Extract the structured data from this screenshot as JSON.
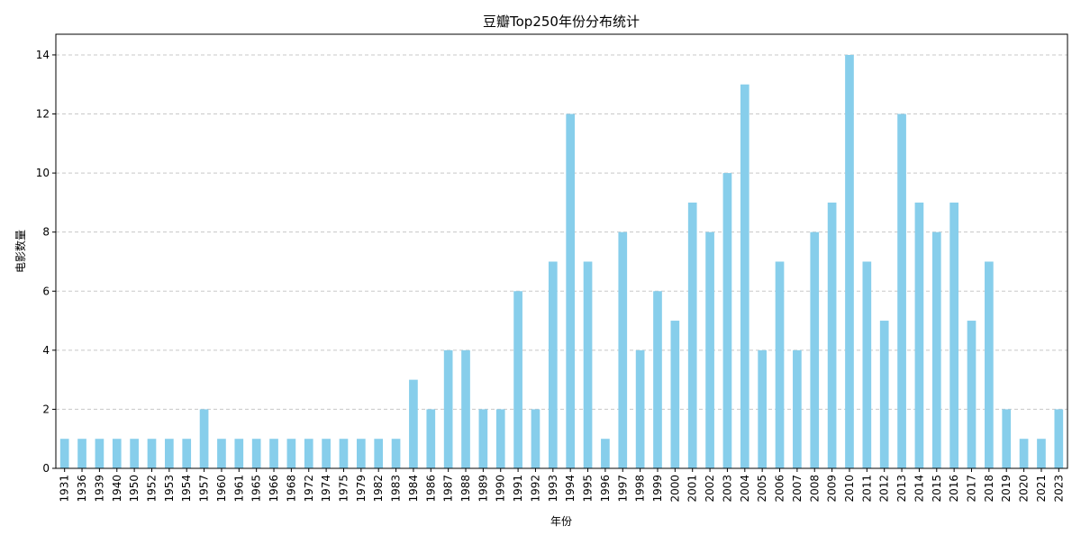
{
  "chart_data": {
    "type": "bar",
    "title": "豆瓣Top250年份分布统计",
    "xlabel": "年份",
    "ylabel": "电影数量",
    "ylim": [
      0,
      14.7
    ],
    "yticks": [
      0,
      2,
      4,
      6,
      8,
      10,
      12,
      14
    ],
    "grid": "y-dashed",
    "bar_color": "#87CEEB",
    "categories": [
      "1931",
      "1936",
      "1939",
      "1940",
      "1950",
      "1952",
      "1953",
      "1954",
      "1957",
      "1960",
      "1961",
      "1965",
      "1966",
      "1968",
      "1972",
      "1974",
      "1975",
      "1979",
      "1982",
      "1983",
      "1984",
      "1986",
      "1987",
      "1988",
      "1989",
      "1990",
      "1991",
      "1992",
      "1993",
      "1994",
      "1995",
      "1996",
      "1997",
      "1998",
      "1999",
      "2000",
      "2001",
      "2002",
      "2003",
      "2004",
      "2005",
      "2006",
      "2007",
      "2008",
      "2009",
      "2010",
      "2011",
      "2012",
      "2013",
      "2014",
      "2015",
      "2016",
      "2017",
      "2018",
      "2019",
      "2020",
      "2021",
      "2023"
    ],
    "values": [
      1,
      1,
      1,
      1,
      1,
      1,
      1,
      1,
      2,
      1,
      1,
      1,
      1,
      1,
      1,
      1,
      1,
      1,
      1,
      1,
      3,
      2,
      4,
      4,
      2,
      2,
      6,
      2,
      7,
      12,
      7,
      1,
      8,
      4,
      6,
      5,
      9,
      8,
      10,
      13,
      4,
      7,
      4,
      8,
      9,
      14,
      7,
      5,
      12,
      9,
      8,
      9,
      5,
      7,
      2,
      1,
      1,
      2
    ]
  }
}
